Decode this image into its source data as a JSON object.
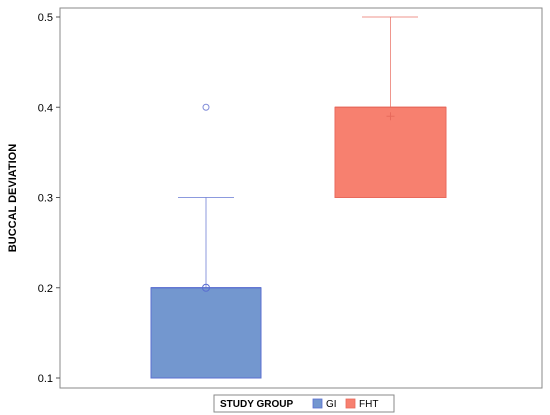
{
  "chart_data": {
    "type": "box",
    "ylabel": "BUCCAL DEVIATION",
    "xlabel": "",
    "ylim": [
      0.1,
      0.5
    ],
    "yticks": [
      "0.1",
      "0.2",
      "0.3",
      "0.4",
      "0.5"
    ],
    "grid": false,
    "legend": {
      "title": "STUDY GROUP",
      "position": "bottom",
      "entries": [
        "GI",
        "FHT"
      ]
    },
    "series": [
      {
        "name": "GI",
        "color": "#7397cf",
        "edge_color": "#5b6fd0",
        "min": 0.1,
        "q1": 0.1,
        "median": 0.2,
        "q3": 0.2,
        "max": 0.3,
        "mean": 0.2,
        "mean_marker": "circle",
        "outliers": [
          0.4
        ]
      },
      {
        "name": "FHT",
        "color": "#f7806f",
        "edge_color": "#e86a5c",
        "min": 0.3,
        "q1": 0.3,
        "median": 0.4,
        "q3": 0.4,
        "max": 0.5,
        "mean": 0.39,
        "mean_marker": "plus",
        "outliers": []
      }
    ]
  }
}
